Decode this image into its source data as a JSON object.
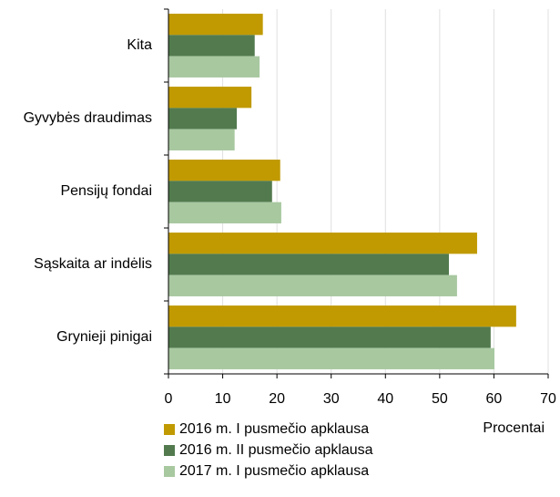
{
  "chart_data": {
    "type": "barh",
    "categories": [
      "Kita",
      "Gyvybės draudimas",
      "Pensijų fondai",
      "Sąskaita ar indėlis",
      "Grynieji pinigai"
    ],
    "series": [
      {
        "name": "2016 m. I pusmečio apklausa",
        "color": "#c09a00",
        "values": [
          17.4,
          15.3,
          20.6,
          56.9,
          64.1
        ]
      },
      {
        "name": "2016 m. II pusmečio apklausa",
        "color": "#527a4e",
        "values": [
          15.9,
          12.6,
          19.1,
          51.7,
          59.4
        ]
      },
      {
        "name": "2017 m. I pusmečio apklausa",
        "color": "#a8c8a0",
        "values": [
          16.8,
          12.2,
          20.8,
          53.2,
          60.1
        ]
      }
    ],
    "x_label": "Procentai",
    "xlim": [
      0,
      70
    ],
    "xticks": [
      0,
      10,
      20,
      30,
      40,
      50,
      60,
      70
    ],
    "grid": true,
    "legend": "bottom-left"
  }
}
